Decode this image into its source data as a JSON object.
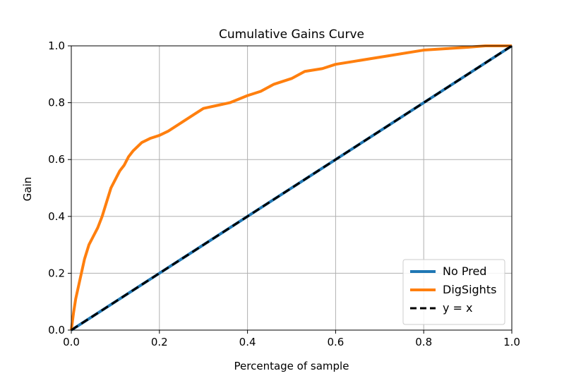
{
  "chart_data": {
    "type": "line",
    "title": "Cumulative Gains Curve",
    "xlabel": "Percentage of sample",
    "ylabel": "Gain",
    "xlim": [
      0.0,
      1.0
    ],
    "ylim": [
      0.0,
      1.0
    ],
    "x_ticks": [
      0.0,
      0.2,
      0.4,
      0.6,
      0.8,
      1.0
    ],
    "y_ticks": [
      0.0,
      0.2,
      0.4,
      0.6,
      0.8,
      1.0
    ],
    "x_tick_labels": [
      "0.0",
      "0.2",
      "0.4",
      "0.6",
      "0.8",
      "1.0"
    ],
    "y_tick_labels": [
      "0.0",
      "0.2",
      "0.4",
      "0.6",
      "0.8",
      "1.0"
    ],
    "grid": true,
    "legend_position": "bottom-right",
    "series": [
      {
        "name": "No Pred",
        "color": "#1f77b4",
        "style": "solid",
        "x": [
          0.0,
          1.0
        ],
        "y": [
          0.0,
          1.0
        ]
      },
      {
        "name": "DigSights",
        "color": "#ff7f0e",
        "style": "solid",
        "x": [
          0.0,
          0.005,
          0.01,
          0.02,
          0.03,
          0.04,
          0.05,
          0.06,
          0.07,
          0.08,
          0.09,
          0.1,
          0.11,
          0.12,
          0.13,
          0.14,
          0.15,
          0.16,
          0.18,
          0.2,
          0.22,
          0.25,
          0.28,
          0.3,
          0.33,
          0.36,
          0.4,
          0.43,
          0.46,
          0.5,
          0.53,
          0.57,
          0.6,
          0.64,
          0.68,
          0.72,
          0.76,
          0.8,
          0.85,
          0.9,
          0.94,
          1.0
        ],
        "y": [
          0.0,
          0.06,
          0.11,
          0.18,
          0.25,
          0.3,
          0.33,
          0.36,
          0.4,
          0.45,
          0.5,
          0.53,
          0.56,
          0.58,
          0.61,
          0.63,
          0.645,
          0.66,
          0.675,
          0.685,
          0.7,
          0.73,
          0.76,
          0.78,
          0.79,
          0.8,
          0.825,
          0.84,
          0.865,
          0.885,
          0.91,
          0.92,
          0.935,
          0.945,
          0.955,
          0.965,
          0.975,
          0.985,
          0.99,
          0.995,
          1.0,
          1.0
        ]
      },
      {
        "name": "y = x",
        "color": "#000000",
        "style": "dashed",
        "x": [
          0.0,
          1.0
        ],
        "y": [
          0.0,
          1.0
        ]
      }
    ]
  }
}
